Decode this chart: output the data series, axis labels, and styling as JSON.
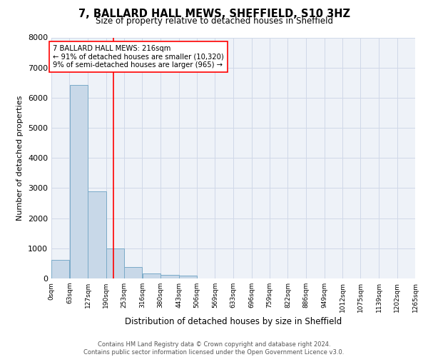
{
  "title": "7, BALLARD HALL MEWS, SHEFFIELD, S10 3HZ",
  "subtitle": "Size of property relative to detached houses in Sheffield",
  "xlabel": "Distribution of detached houses by size in Sheffield",
  "ylabel": "Number of detached properties",
  "bar_color": "#c8d8e8",
  "bar_edge_color": "#7aaac8",
  "grid_color": "#d0d8e8",
  "background_color": "#eef2f8",
  "property_line_x": 216,
  "annotation_line1": "7 BALLARD HALL MEWS: 216sqm",
  "annotation_line2": "← 91% of detached houses are smaller (10,320)",
  "annotation_line3": "9% of semi-detached houses are larger (965) →",
  "footer_line1": "Contains HM Land Registry data © Crown copyright and database right 2024.",
  "footer_line2": "Contains public sector information licensed under the Open Government Licence v3.0.",
  "bin_edges": [
    0,
    63,
    127,
    190,
    253,
    316,
    380,
    443,
    506,
    569,
    633,
    696,
    759,
    822,
    886,
    949,
    1012,
    1075,
    1139,
    1202,
    1265
  ],
  "bin_labels": [
    "0sqm",
    "63sqm",
    "127sqm",
    "190sqm",
    "253sqm",
    "316sqm",
    "380sqm",
    "443sqm",
    "506sqm",
    "569sqm",
    "633sqm",
    "696sqm",
    "759sqm",
    "822sqm",
    "886sqm",
    "949sqm",
    "1012sqm",
    "1075sqm",
    "1139sqm",
    "1202sqm",
    "1265sqm"
  ],
  "bar_heights": [
    620,
    6430,
    2900,
    1000,
    380,
    175,
    120,
    90,
    0,
    0,
    0,
    0,
    0,
    0,
    0,
    0,
    0,
    0,
    0,
    0
  ],
  "ylim": [
    0,
    8000
  ],
  "yticks": [
    0,
    1000,
    2000,
    3000,
    4000,
    5000,
    6000,
    7000,
    8000
  ]
}
